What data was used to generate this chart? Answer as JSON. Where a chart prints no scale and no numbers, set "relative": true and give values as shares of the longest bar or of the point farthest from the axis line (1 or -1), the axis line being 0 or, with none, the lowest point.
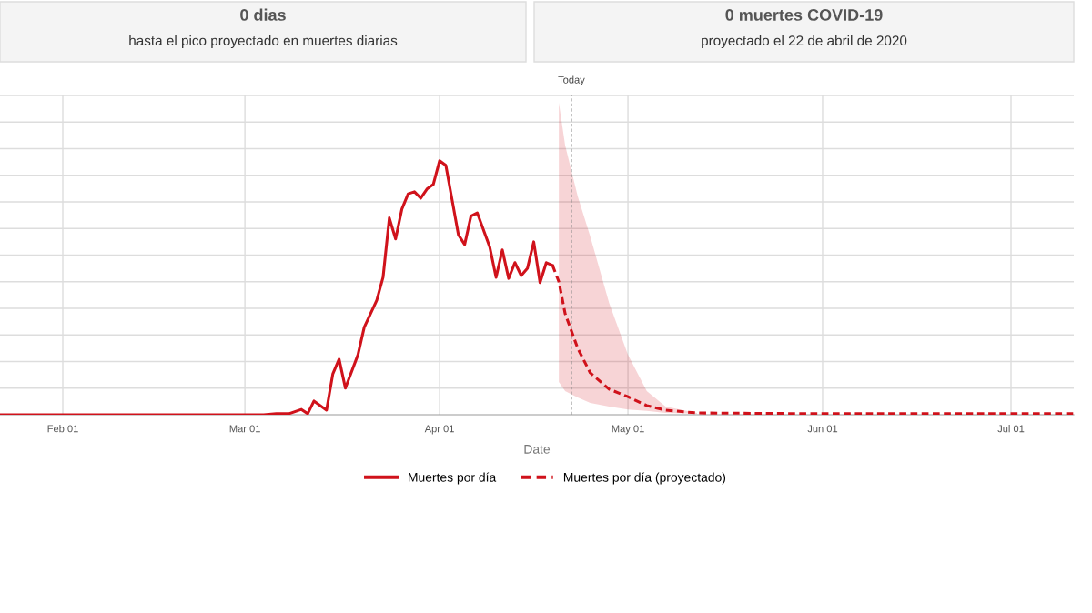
{
  "chart_data": {
    "type": "line",
    "relative": true,
    "xlabel": "Date",
    "annotations": [
      "0 dias",
      "hasta el pico proyectado en muertes diarias",
      "0 muertes COVID-19",
      "proyectado el 22 de abril de 2020"
    ],
    "xlim": [
      "2020-01-22",
      "2020-07-11"
    ],
    "xticks": [
      {
        "value": "2020-02-01",
        "label": "Feb 01"
      },
      {
        "value": "2020-03-01",
        "label": "Mar 01"
      },
      {
        "value": "2020-04-01",
        "label": "Apr 01"
      },
      {
        "value": "2020-05-01",
        "label": "May 01"
      },
      {
        "value": "2020-06-01",
        "label": "Jun 01"
      },
      {
        "value": "2020-07-01",
        "label": "Jul 01"
      }
    ],
    "grid": true,
    "legend": "bottom",
    "marker": "none",
    "ref_lines": [
      {
        "axis": "x",
        "value": "2020-04-22",
        "label": "Today",
        "color": "#888888",
        "line_style": "dashed"
      }
    ],
    "series": [
      {
        "name": "Muertes por día",
        "color": "#d0121b",
        "line_style": "solid",
        "x": [
          "2020-01-22",
          "2020-03-04",
          "2020-03-06",
          "2020-03-08",
          "2020-03-10",
          "2020-03-11",
          "2020-03-12",
          "2020-03-14",
          "2020-03-15",
          "2020-03-16",
          "2020-03-17",
          "2020-03-19",
          "2020-03-20",
          "2020-03-22",
          "2020-03-23",
          "2020-03-24",
          "2020-03-25",
          "2020-03-26",
          "2020-03-27",
          "2020-03-28",
          "2020-03-29",
          "2020-03-30",
          "2020-03-31",
          "2020-04-01",
          "2020-04-02",
          "2020-04-04",
          "2020-04-05",
          "2020-04-06",
          "2020-04-07",
          "2020-04-09",
          "2020-04-10",
          "2020-04-11",
          "2020-04-12",
          "2020-04-13",
          "2020-04-14",
          "2020-04-15",
          "2020-04-16",
          "2020-04-17",
          "2020-04-18",
          "2020-04-19"
        ],
        "values": [
          0,
          0,
          0.004,
          0.004,
          0.021,
          0.004,
          0.054,
          0.018,
          0.161,
          0.219,
          0.105,
          0.236,
          0.344,
          0.451,
          0.541,
          0.775,
          0.692,
          0.81,
          0.87,
          0.878,
          0.853,
          0.889,
          0.907,
          1.0,
          0.982,
          0.709,
          0.67,
          0.782,
          0.795,
          0.66,
          0.541,
          0.649,
          0.537,
          0.599,
          0.548,
          0.577,
          0.681,
          0.52,
          0.599,
          0.588
        ]
      },
      {
        "name": "Muertes por día (proyectado)",
        "color": "#d0121b",
        "line_style": "dashed",
        "x": [
          "2020-04-19",
          "2020-04-20",
          "2020-04-21",
          "2020-04-23",
          "2020-04-25",
          "2020-04-28",
          "2020-05-01",
          "2020-05-04",
          "2020-05-07",
          "2020-05-12",
          "2020-06-01",
          "2020-07-11"
        ],
        "values": [
          0.588,
          0.524,
          0.398,
          0.262,
          0.165,
          0.101,
          0.071,
          0.036,
          0.018,
          0.007,
          0.004,
          0.004
        ],
        "lower": [
          null,
          0.129,
          0.093,
          0.068,
          0.047,
          0.032,
          0.021,
          0.015,
          0.007,
          0.004,
          null,
          null
        ],
        "upper": [
          null,
          1.229,
          1.061,
          0.861,
          0.702,
          0.441,
          0.236,
          0.093,
          0.032,
          0.007,
          null,
          null
        ]
      }
    ]
  }
}
